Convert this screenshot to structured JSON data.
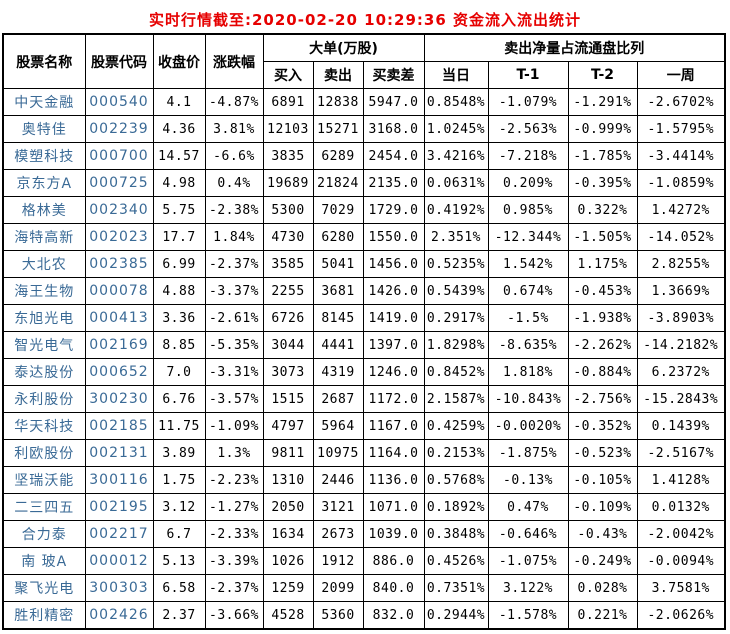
{
  "title": "实时行情截至:2020-02-20 10:29:36 资金流入流出统计",
  "colors": {
    "title_red": "#e60000",
    "stock_blue": "#3a6a96",
    "border": "#000000",
    "background": "#ffffff"
  },
  "table": {
    "headers": {
      "stock_name": "股票名称",
      "stock_code": "股票代码",
      "close_price": "收盘价",
      "change_pct": "涨跌幅",
      "big_order_group": "大单(万股)",
      "buy": "买入",
      "sell": "卖出",
      "buy_sell_diff": "买卖差",
      "net_sell_group": "卖出净量占流通盘比列",
      "today": "当日",
      "t1": "T-1",
      "t2": "T-2",
      "week": "一周"
    },
    "rows": [
      [
        "中天金融",
        "000540",
        "4.1",
        "-4.87%",
        "6891",
        "12838",
        "5947.0",
        "0.8548%",
        "-1.079%",
        "-1.291%",
        "-2.6702%"
      ],
      [
        "奥特佳",
        "002239",
        "4.36",
        "3.81%",
        "12103",
        "15271",
        "3168.0",
        "1.0245%",
        "-2.563%",
        "-0.999%",
        "-1.5795%"
      ],
      [
        "模塑科技",
        "000700",
        "14.57",
        "-6.6%",
        "3835",
        "6289",
        "2454.0",
        "3.4216%",
        "-7.218%",
        "-1.785%",
        "-3.4414%"
      ],
      [
        "京东方A",
        "000725",
        "4.98",
        "0.4%",
        "19689",
        "21824",
        "2135.0",
        "0.0631%",
        "0.209%",
        "-0.395%",
        "-1.0859%"
      ],
      [
        "格林美",
        "002340",
        "5.75",
        "-2.38%",
        "5300",
        "7029",
        "1729.0",
        "0.4192%",
        "0.985%",
        "0.322%",
        "1.4272%"
      ],
      [
        "海特高新",
        "002023",
        "17.7",
        "1.84%",
        "4730",
        "6280",
        "1550.0",
        "2.351%",
        "-12.344%",
        "-1.505%",
        "-14.052%"
      ],
      [
        "大北农",
        "002385",
        "6.99",
        "-2.37%",
        "3585",
        "5041",
        "1456.0",
        "0.5235%",
        "1.542%",
        "1.175%",
        "2.8255%"
      ],
      [
        "海王生物",
        "000078",
        "4.88",
        "-3.37%",
        "2255",
        "3681",
        "1426.0",
        "0.5439%",
        "0.674%",
        "-0.453%",
        "1.3669%"
      ],
      [
        "东旭光电",
        "000413",
        "3.36",
        "-2.61%",
        "6726",
        "8145",
        "1419.0",
        "0.2917%",
        "-1.5%",
        "-1.938%",
        "-3.8903%"
      ],
      [
        "智光电气",
        "002169",
        "8.85",
        "-5.35%",
        "3044",
        "4441",
        "1397.0",
        "1.8298%",
        "-8.635%",
        "-2.262%",
        "-14.2182%"
      ],
      [
        "泰达股份",
        "000652",
        "7.0",
        "-3.31%",
        "3073",
        "4319",
        "1246.0",
        "0.8452%",
        "1.818%",
        "-0.884%",
        "6.2372%"
      ],
      [
        "永利股份",
        "300230",
        "6.76",
        "-3.57%",
        "1515",
        "2687",
        "1172.0",
        "2.1587%",
        "-10.843%",
        "-2.756%",
        "-15.2843%"
      ],
      [
        "华天科技",
        "002185",
        "11.75",
        "-1.09%",
        "4797",
        "5964",
        "1167.0",
        "0.4259%",
        "-0.0020%",
        "-0.352%",
        "0.1439%"
      ],
      [
        "利欧股份",
        "002131",
        "3.89",
        "1.3%",
        "9811",
        "10975",
        "1164.0",
        "0.2153%",
        "-1.875%",
        "-0.523%",
        "-2.5167%"
      ],
      [
        "坚瑞沃能",
        "300116",
        "1.75",
        "-2.23%",
        "1310",
        "2446",
        "1136.0",
        "0.5768%",
        "-0.13%",
        "-0.105%",
        "1.4128%"
      ],
      [
        "二三四五",
        "002195",
        "3.12",
        "-1.27%",
        "2050",
        "3121",
        "1071.0",
        "0.1892%",
        "0.47%",
        "-0.109%",
        "0.0132%"
      ],
      [
        "合力泰",
        "002217",
        "6.7",
        "-2.33%",
        "1634",
        "2673",
        "1039.0",
        "0.3848%",
        "-0.646%",
        "-0.43%",
        "-2.0042%"
      ],
      [
        "南 玻A",
        "000012",
        "5.13",
        "-3.39%",
        "1026",
        "1912",
        "886.0",
        "0.4526%",
        "-1.075%",
        "-0.249%",
        "-0.0094%"
      ],
      [
        "聚飞光电",
        "300303",
        "6.58",
        "-2.37%",
        "1259",
        "2099",
        "840.0",
        "0.7351%",
        "3.122%",
        "0.028%",
        "3.7581%"
      ],
      [
        "胜利精密",
        "002426",
        "2.37",
        "-3.66%",
        "4528",
        "5360",
        "832.0",
        "0.2944%",
        "-1.578%",
        "0.221%",
        "-2.0626%"
      ]
    ]
  }
}
